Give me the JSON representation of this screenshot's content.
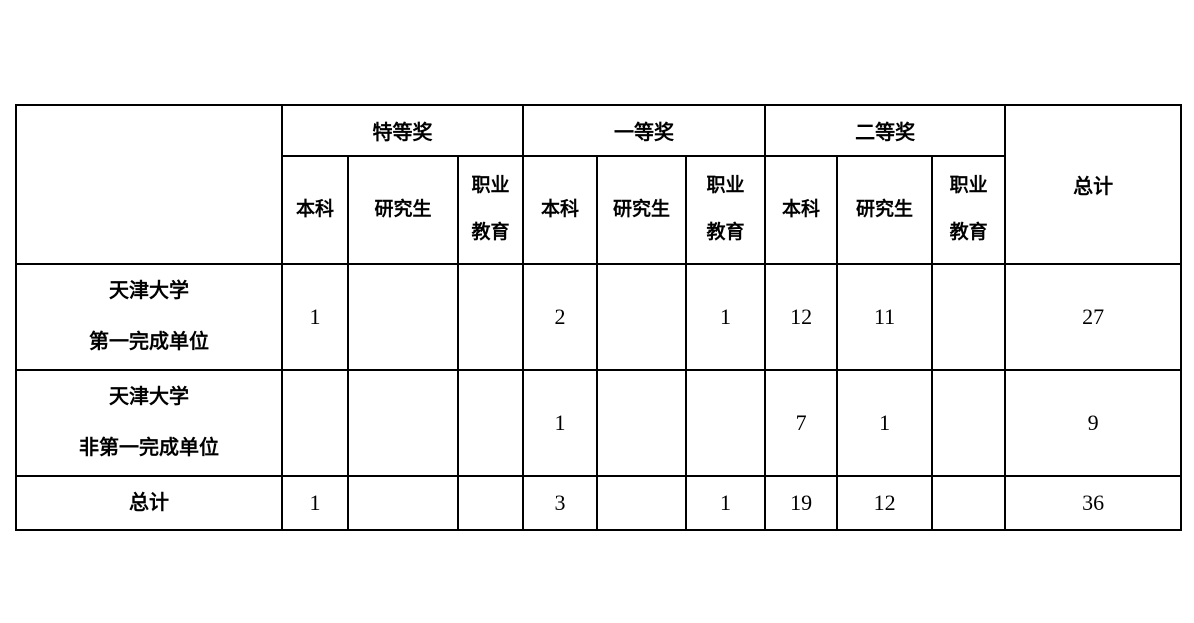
{
  "table": {
    "total_header": "总计",
    "groups": [
      {
        "label": "特等奖",
        "subs": [
          [
            "本科"
          ],
          [
            "研究生"
          ],
          [
            "职业",
            "教育"
          ]
        ]
      },
      {
        "label": "一等奖",
        "subs": [
          [
            "本科"
          ],
          [
            "研究生"
          ],
          [
            "职业",
            "教育"
          ]
        ]
      },
      {
        "label": "二等奖",
        "subs": [
          [
            "本科"
          ],
          [
            "研究生"
          ],
          [
            "职业",
            "教育"
          ]
        ]
      }
    ],
    "rows": [
      {
        "label_lines": [
          "天津大学",
          "第一完成单位"
        ],
        "values": [
          "1",
          "",
          "",
          "2",
          "",
          "1",
          "12",
          "11",
          "",
          "27"
        ]
      },
      {
        "label_lines": [
          "天津大学",
          "非第一完成单位"
        ],
        "values": [
          "",
          "",
          "",
          "1",
          "",
          "",
          "7",
          "1",
          "",
          "9"
        ]
      },
      {
        "label_lines": [
          "总计"
        ],
        "values": [
          "1",
          "",
          "",
          "3",
          "",
          "1",
          "19",
          "12",
          "",
          "36"
        ]
      }
    ]
  },
  "colors": {
    "border": "#000000",
    "text": "#000000",
    "background": "#ffffff"
  }
}
